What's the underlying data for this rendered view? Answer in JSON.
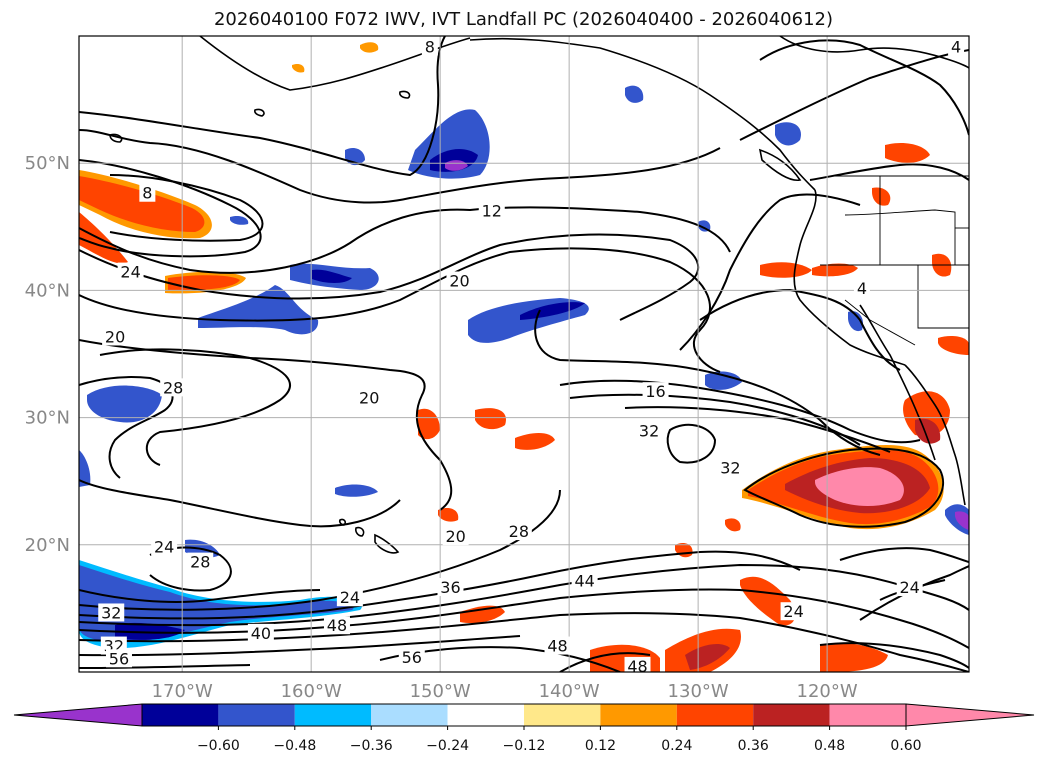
{
  "title": "2026040100 F072 IWV, IVT Landfall PC (2026040400 - 2026040612)",
  "map": {
    "lon_range": [
      -178,
      -109
    ],
    "lat_range": [
      10,
      60
    ],
    "lon_ticks": [
      {
        "value": -170,
        "label": "170°W"
      },
      {
        "value": -160,
        "label": "160°W"
      },
      {
        "value": -150,
        "label": "150°W"
      },
      {
        "value": -140,
        "label": "140°W"
      },
      {
        "value": -130,
        "label": "130°W"
      },
      {
        "value": -120,
        "label": "120°W"
      }
    ],
    "lat_ticks": [
      {
        "value": 20,
        "label": "20°N"
      },
      {
        "value": 30,
        "label": "30°N"
      },
      {
        "value": 40,
        "label": "40°N"
      },
      {
        "value": 50,
        "label": "50°N"
      }
    ],
    "contour_labels": [
      {
        "text": "8",
        "lon": -150.8,
        "lat": 59.1
      },
      {
        "text": "8",
        "lon": -172.7,
        "lat": 47.6
      },
      {
        "text": "12",
        "lon": -146.0,
        "lat": 46.2
      },
      {
        "text": "24",
        "lon": -174.0,
        "lat": 41.4
      },
      {
        "text": "20",
        "lon": -148.5,
        "lat": 40.7
      },
      {
        "text": "20",
        "lon": -175.2,
        "lat": 36.3
      },
      {
        "text": "28",
        "lon": -170.7,
        "lat": 32.3
      },
      {
        "text": "20",
        "lon": -155.5,
        "lat": 31.5
      },
      {
        "text": "16",
        "lon": -133.3,
        "lat": 32.0
      },
      {
        "text": "32",
        "lon": -133.8,
        "lat": 28.9
      },
      {
        "text": "32",
        "lon": -127.5,
        "lat": 26.0
      },
      {
        "text": "4",
        "lon": -117.3,
        "lat": 40.1
      },
      {
        "text": "28",
        "lon": -143.9,
        "lat": 21.0
      },
      {
        "text": "20",
        "lon": -148.8,
        "lat": 20.6
      },
      {
        "text": "24",
        "lon": -171.4,
        "lat": 19.8
      },
      {
        "text": "28",
        "lon": -168.6,
        "lat": 18.6
      },
      {
        "text": "36",
        "lon": -149.2,
        "lat": 16.6
      },
      {
        "text": "44",
        "lon": -138.8,
        "lat": 17.1
      },
      {
        "text": "24",
        "lon": -157.0,
        "lat": 15.8
      },
      {
        "text": "48",
        "lon": -158.0,
        "lat": 13.6
      },
      {
        "text": "32",
        "lon": -175.5,
        "lat": 14.6
      },
      {
        "text": "40",
        "lon": -163.9,
        "lat": 13.0
      },
      {
        "text": "32",
        "lon": -175.3,
        "lat": 12.0
      },
      {
        "text": "56",
        "lon": -174.9,
        "lat": 11.0
      },
      {
        "text": "56",
        "lon": -152.2,
        "lat": 11.1
      },
      {
        "text": "48",
        "lon": -140.9,
        "lat": 12.0
      },
      {
        "text": "48",
        "lon": -134.7,
        "lat": 10.4
      },
      {
        "text": "24",
        "lon": -122.6,
        "lat": 14.7
      },
      {
        "text": "24",
        "lon": -113.6,
        "lat": 16.6
      },
      {
        "text": "4",
        "lon": -110.0,
        "lat": 59.1
      }
    ]
  },
  "colorbar": {
    "tick_labels": [
      "−0.60",
      "−0.48",
      "−0.36",
      "−0.24",
      "−0.12",
      "0.12",
      "0.24",
      "0.36",
      "0.48",
      "0.60"
    ],
    "colors": [
      "#9933cc",
      "#000099",
      "#3355cc",
      "#00bbff",
      "#aaddff",
      "#ffffff",
      "#ffe88a",
      "#ff9900",
      "#ff4400",
      "#bb2222",
      "#ff88aa",
      "#ff88aa"
    ]
  }
}
